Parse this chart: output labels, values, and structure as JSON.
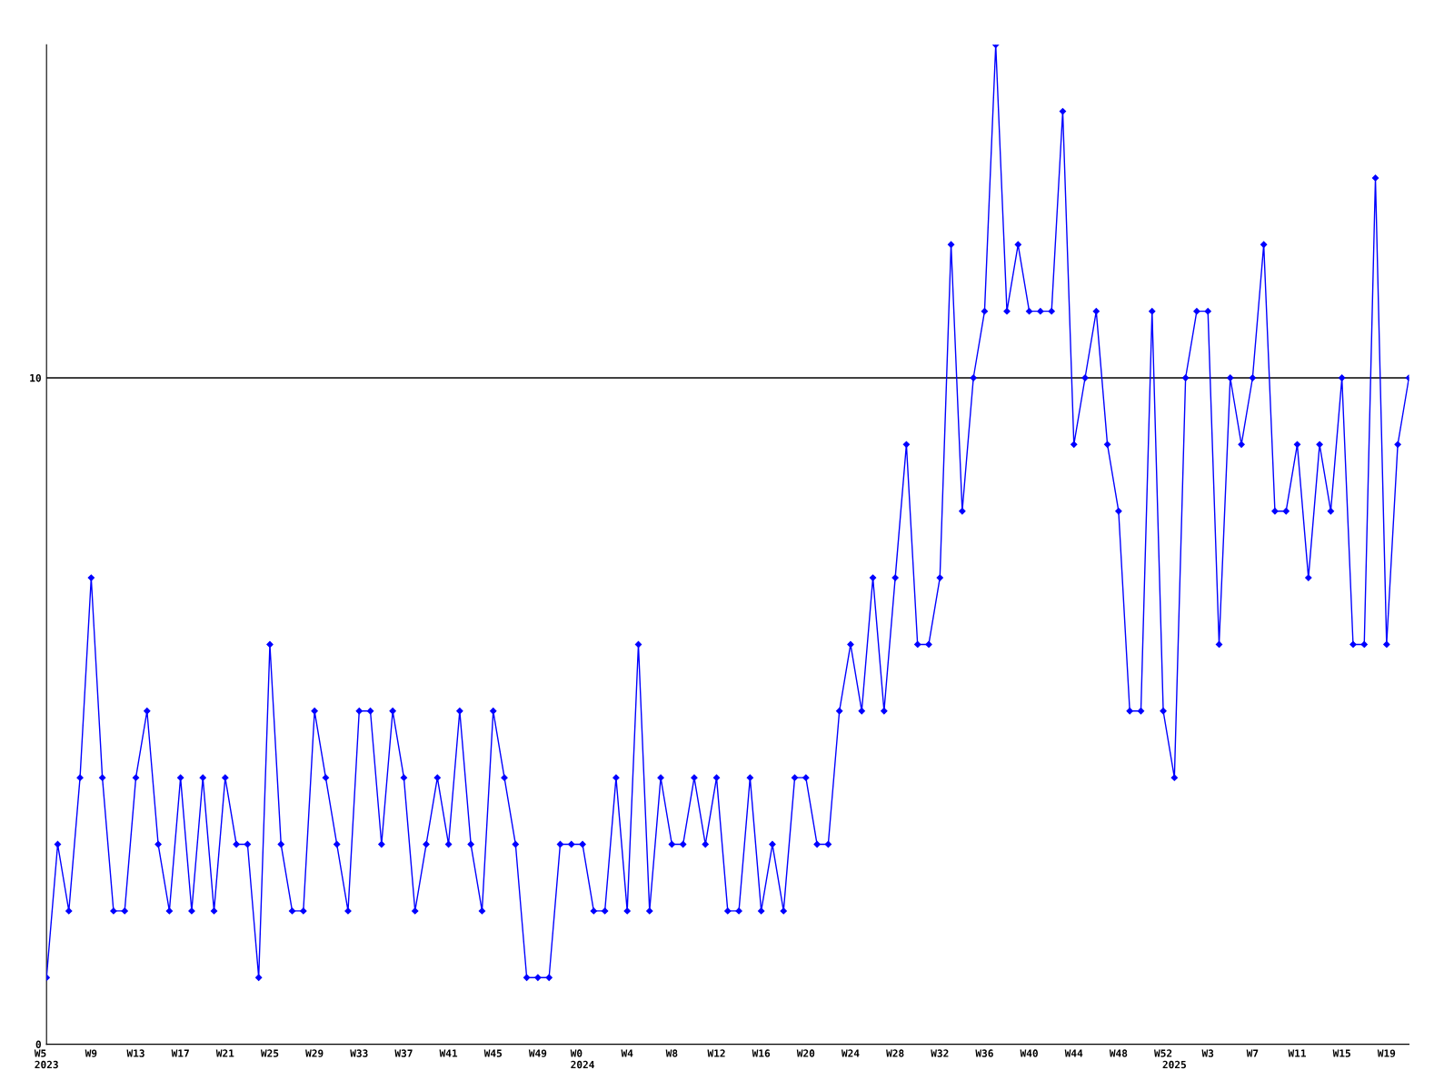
{
  "chart_data": {
    "type": "line",
    "categories": [
      "W5\n2023",
      null,
      null,
      null,
      "W9",
      null,
      null,
      null,
      "W13",
      null,
      null,
      null,
      "W17",
      null,
      null,
      null,
      "W21",
      null,
      null,
      null,
      "W25",
      null,
      null,
      null,
      "W29",
      null,
      null,
      null,
      "W33",
      null,
      null,
      null,
      "W37",
      null,
      null,
      null,
      "W41",
      null,
      null,
      null,
      "W45",
      null,
      null,
      null,
      "W49",
      null,
      null,
      null,
      "W0\n2024",
      null,
      null,
      null,
      "W4",
      null,
      null,
      null,
      "W8",
      null,
      null,
      null,
      "W12",
      null,
      null,
      null,
      "W16",
      null,
      null,
      null,
      "W20",
      null,
      null,
      null,
      "W24",
      null,
      null,
      null,
      "W28",
      null,
      null,
      null,
      "W32",
      null,
      null,
      null,
      "W36",
      null,
      null,
      null,
      "W40",
      null,
      null,
      null,
      "W44",
      null,
      null,
      null,
      "W48",
      null,
      null,
      null,
      "W52",
      "\n2025",
      null,
      null,
      "W3",
      null,
      null,
      null,
      "W7",
      null,
      null,
      null,
      "W11",
      null,
      null,
      null,
      "W15",
      null,
      null,
      null,
      "W19",
      null,
      null
    ],
    "series": [
      {
        "color": "#0000ff",
        "values": [
          1,
          3,
          2,
          4,
          7,
          4,
          2,
          2,
          4,
          5,
          3,
          2,
          4,
          2,
          4,
          2,
          4,
          3,
          3,
          1,
          6,
          3,
          2,
          2,
          5,
          4,
          3,
          2,
          5,
          5,
          3,
          5,
          4,
          2,
          3,
          4,
          3,
          5,
          3,
          2,
          5,
          4,
          3,
          1,
          1,
          1,
          3,
          3,
          3,
          2,
          2,
          4,
          2,
          6,
          2,
          4,
          3,
          3,
          4,
          3,
          4,
          2,
          2,
          4,
          2,
          3,
          2,
          4,
          4,
          3,
          3,
          5,
          6,
          5,
          7,
          5,
          7,
          9,
          6,
          6,
          7,
          12,
          8,
          10,
          11,
          15,
          11,
          12,
          11,
          11,
          11,
          14,
          9,
          10,
          11,
          9,
          8,
          5,
          5,
          11,
          5,
          4,
          10,
          11,
          11,
          6,
          10,
          9,
          10,
          12,
          8,
          8,
          9,
          7,
          9,
          8,
          10,
          6,
          6,
          13,
          6,
          9,
          10
        ]
      }
    ],
    "ylim": [
      0,
      15
    ],
    "yticks": [
      0,
      10
    ],
    "grid": "y",
    "marker": "diamond",
    "line_style": "solid"
  }
}
